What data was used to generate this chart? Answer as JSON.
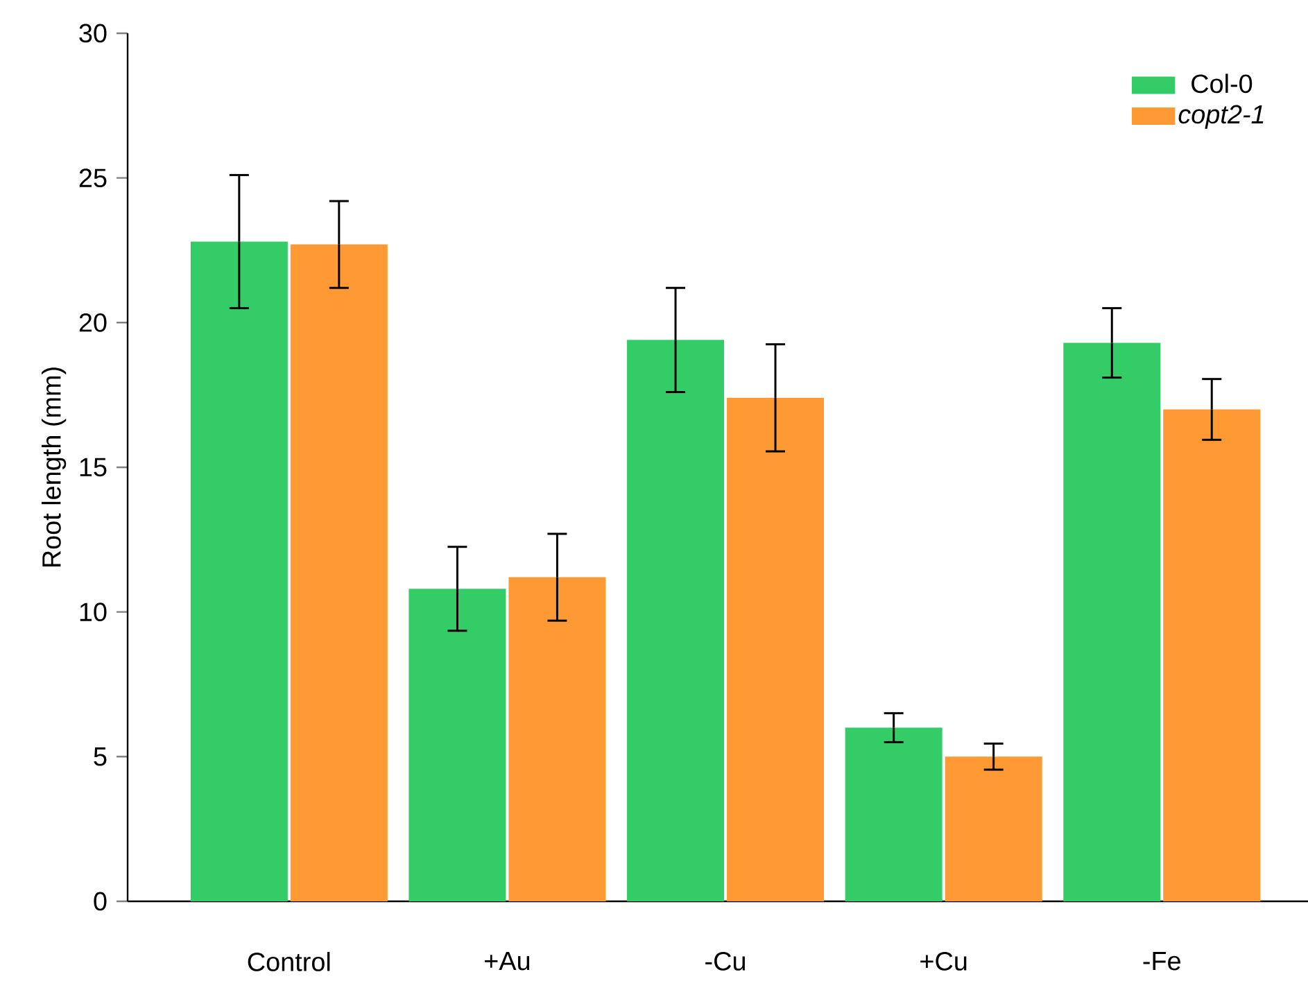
{
  "chart_data": {
    "type": "bar",
    "ylabel": "Root length (mm)",
    "categories": [
      "Control",
      "+Au",
      "-Cu",
      "+Cu",
      "-Fe"
    ],
    "series": [
      {
        "name": "Col-0",
        "color": "#33cc66",
        "values": [
          22.8,
          10.8,
          19.4,
          6.0,
          19.3
        ],
        "errors": [
          2.3,
          1.45,
          1.8,
          0.5,
          1.2
        ]
      },
      {
        "name": "*copt2-1*",
        "color": "#ff9933",
        "values": [
          22.7,
          11.2,
          17.4,
          5.0,
          17.0
        ],
        "errors": [
          1.5,
          1.5,
          1.85,
          0.45,
          1.05
        ]
      }
    ],
    "ylim": [
      0,
      30
    ],
    "yticks": [
      0,
      5,
      10,
      15,
      20,
      25,
      30
    ],
    "legend": "top right",
    "grid": false
  }
}
